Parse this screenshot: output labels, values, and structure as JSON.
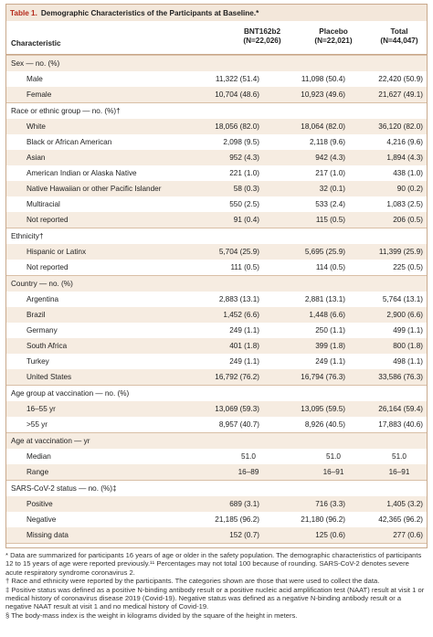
{
  "table": {
    "label": "Table 1.",
    "title": "Demographic Characteristics of the Participants at Baseline.*",
    "columns": {
      "characteristic": "Characteristic",
      "bnt_name": "BNT162b2",
      "bnt_n": "(N=22,026)",
      "placebo_name": "Placebo",
      "placebo_n": "(N=22,021)",
      "total_name": "Total",
      "total_n": "(N=44,047)"
    },
    "rows": [
      {
        "type": "section",
        "label": "Sex — no. (%)"
      },
      {
        "type": "value",
        "label": "Male",
        "bnt": "11,322 (51.4)",
        "placebo": "11,098 (50.4)",
        "total": "22,420 (50.9)"
      },
      {
        "type": "value",
        "label": "Female",
        "bnt": "10,704 (48.6)",
        "placebo": "10,923 (49.6)",
        "total": "21,627 (49.1)"
      },
      {
        "type": "section",
        "label": "Race or ethnic group — no. (%)†"
      },
      {
        "type": "value",
        "label": "White",
        "bnt": "18,056 (82.0)",
        "placebo": "18,064 (82.0)",
        "total": "36,120 (82.0)"
      },
      {
        "type": "value",
        "label": "Black or African American",
        "bnt": "2,098 (9.5)",
        "placebo": "2,118 (9.6)",
        "total": "4,216 (9.6)"
      },
      {
        "type": "value",
        "label": "Asian",
        "bnt": "952 (4.3)",
        "placebo": "942 (4.3)",
        "total": "1,894 (4.3)"
      },
      {
        "type": "value",
        "label": "American Indian or Alaska Native",
        "bnt": "221 (1.0)",
        "placebo": "217 (1.0)",
        "total": "438 (1.0)"
      },
      {
        "type": "value",
        "label": "Native Hawaiian or other Pacific Islander",
        "bnt": "58 (0.3)",
        "placebo": "32 (0.1)",
        "total": "90 (0.2)"
      },
      {
        "type": "value",
        "label": "Multiracial",
        "bnt": "550 (2.5)",
        "placebo": "533 (2.4)",
        "total": "1,083 (2.5)"
      },
      {
        "type": "value",
        "label": "Not reported",
        "bnt": "91 (0.4)",
        "placebo": "115 (0.5)",
        "total": "206 (0.5)"
      },
      {
        "type": "section",
        "label": "Ethnicity†"
      },
      {
        "type": "value",
        "label": "Hispanic or Latinx",
        "bnt": "5,704 (25.9)",
        "placebo": "5,695 (25.9)",
        "total": "11,399 (25.9)"
      },
      {
        "type": "value",
        "label": "Not reported",
        "bnt": "111 (0.5)",
        "placebo": "114 (0.5)",
        "total": "225 (0.5)"
      },
      {
        "type": "section",
        "label": "Country — no. (%)"
      },
      {
        "type": "value",
        "label": "Argentina",
        "bnt": "2,883 (13.1)",
        "placebo": "2,881 (13.1)",
        "total": "5,764 (13.1)"
      },
      {
        "type": "value",
        "label": "Brazil",
        "bnt": "1,452 (6.6)",
        "placebo": "1,448 (6.6)",
        "total": "2,900 (6.6)"
      },
      {
        "type": "value",
        "label": "Germany",
        "bnt": "249 (1.1)",
        "placebo": "250 (1.1)",
        "total": "499 (1.1)"
      },
      {
        "type": "value",
        "label": "South Africa",
        "bnt": "401 (1.8)",
        "placebo": "399 (1.8)",
        "total": "800 (1.8)"
      },
      {
        "type": "value",
        "label": "Turkey",
        "bnt": "249 (1.1)",
        "placebo": "249 (1.1)",
        "total": "498 (1.1)"
      },
      {
        "type": "value",
        "label": "United States",
        "bnt": "16,792 (76.2)",
        "placebo": "16,794 (76.3)",
        "total": "33,586 (76.3)"
      },
      {
        "type": "section",
        "label": "Age group at vaccination — no. (%)"
      },
      {
        "type": "value",
        "label": "16–55 yr",
        "bnt": "13,069 (59.3)",
        "placebo": "13,095 (59.5)",
        "total": "26,164 (59.4)"
      },
      {
        "type": "value",
        "label": ">55 yr",
        "bnt": "8,957 (40.7)",
        "placebo": "8,926 (40.5)",
        "total": "17,883 (40.6)"
      },
      {
        "type": "section",
        "label": "Age at vaccination — yr"
      },
      {
        "type": "center",
        "label": "Median",
        "bnt": "51.0",
        "placebo": "51.0",
        "total": "51.0"
      },
      {
        "type": "center",
        "label": "Range",
        "bnt": "16–89",
        "placebo": "16–91",
        "total": "16–91"
      },
      {
        "type": "section",
        "label": "SARS-CoV-2 status — no. (%)‡"
      },
      {
        "type": "value",
        "label": "Positive",
        "bnt": "689 (3.1)",
        "placebo": "716 (3.3)",
        "total": "1,405 (3.2)"
      },
      {
        "type": "value",
        "label": "Negative",
        "bnt": "21,185 (96.2)",
        "placebo": "21,180 (96.2)",
        "total": "42,365 (96.2)"
      },
      {
        "type": "value",
        "label": "Missing data",
        "bnt": "152 (0.7)",
        "placebo": "125 (0.6)",
        "total": "277 (0.6)"
      },
      {
        "type": "section",
        "label": "Body-mass index — no. (%)§"
      },
      {
        "type": "value",
        "label": "≥30.0: obese",
        "bnt": "7,543 (34.2)",
        "placebo": "7,629 (34.6)",
        "total": "15,172 (34.4)"
      },
      {
        "type": "value",
        "label": "Missing data",
        "bnt": "7 (<1)",
        "placebo": "6 (<1)",
        "total": "13 (<1)"
      }
    ]
  },
  "footnotes": [
    "* Data are summarized for participants 16 years of age or older in the safety population. The demographic characteristics of participants 12 to 15 years of age were reported previously.¹¹ Percentages may not total 100 because of rounding. SARS-CoV-2 denotes severe acute respiratory syndrome coronavirus 2.",
    "† Race and ethnicity were reported by the participants. The categories shown are those that were used to collect the data.",
    "‡ Positive status was defined as a positive N-binding antibody result or a positive nucleic acid amplification test (NAAT) result at visit 1 or medical history of coronavirus disease 2019 (Covid-19). Negative status was defined as a negative N-binding antibody result or a negative NAAT result at visit 1 and no medical history of Covid-19.",
    "§ The body-mass index is the weight in kilograms divided by the square of the height in meters."
  ]
}
